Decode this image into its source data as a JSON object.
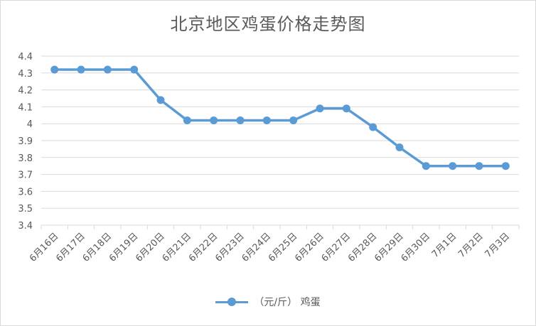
{
  "chart_data": {
    "type": "line",
    "title": "北京地区鸡蛋价格走势图",
    "categories": [
      "6月16日",
      "6月17日",
      "6月18日",
      "6月19日",
      "6月20日",
      "6月21日",
      "6月22日",
      "6月23日",
      "6月24日",
      "6月25日",
      "6月26日",
      "6月27日",
      "6月28日",
      "6月29日",
      "6月30日",
      "7月1日",
      "7月2日",
      "7月3日"
    ],
    "series": [
      {
        "name": "（元/斤） 鸡蛋",
        "values": [
          4.32,
          4.32,
          4.32,
          4.32,
          4.14,
          4.02,
          4.02,
          4.02,
          4.02,
          4.02,
          4.09,
          4.09,
          3.98,
          3.86,
          3.75,
          3.75,
          3.75,
          3.75
        ]
      }
    ],
    "ylim": [
      3.4,
      4.4
    ],
    "yticks": [
      "3.4",
      "3.5",
      "3.6",
      "3.7",
      "3.8",
      "3.9",
      "4",
      "4.1",
      "4.2",
      "4.3",
      "4.4"
    ],
    "grid": true,
    "legend_position": "bottom",
    "series_color": "#5b9bd5",
    "grid_color": "#d9d9d9"
  }
}
